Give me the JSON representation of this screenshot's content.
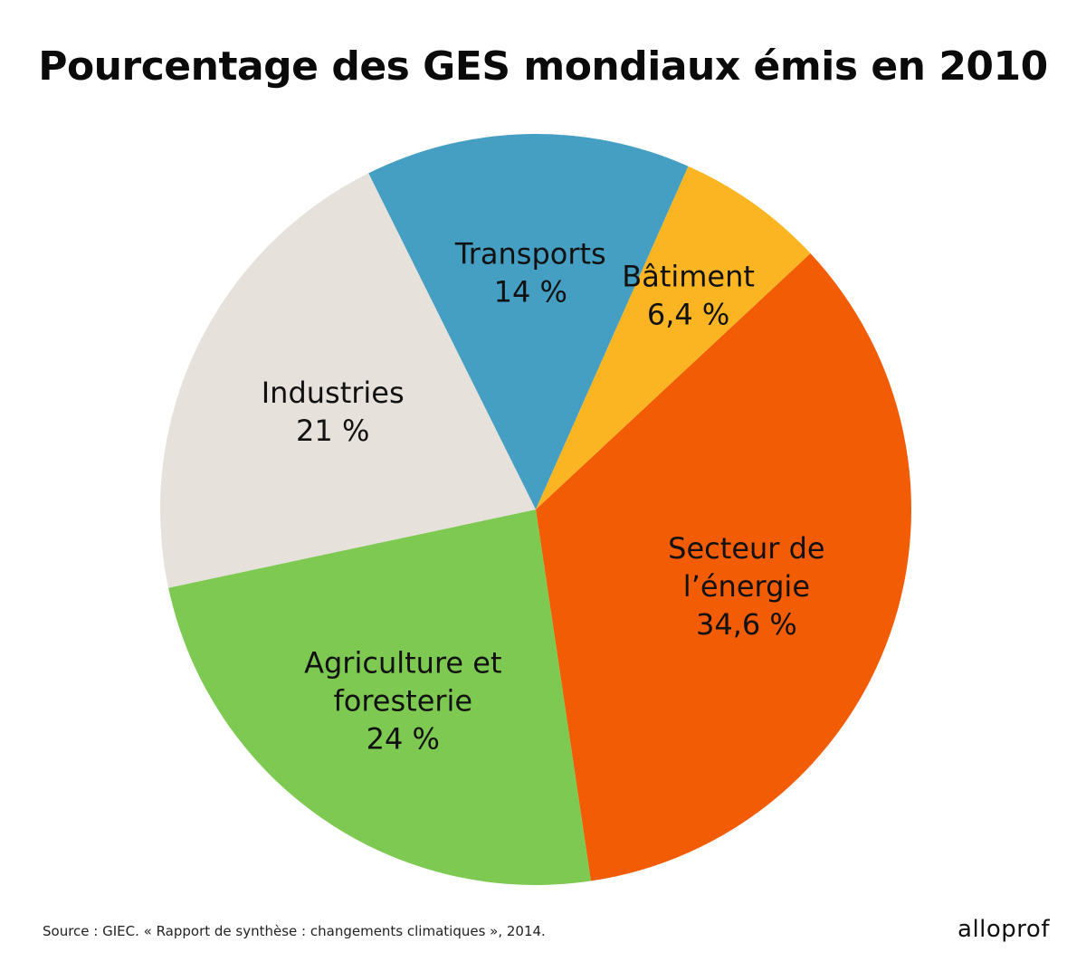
{
  "chart_data": {
    "type": "pie",
    "title": "Pourcentage des GES mondiaux émis en 2010",
    "slices": [
      {
        "name": "Secteur de l’énergie",
        "lines": [
          "Secteur de",
          "l’énergie",
          "34,6 %"
        ],
        "value": 34.6,
        "value_label": "34,6 %",
        "color": "#F25C05"
      },
      {
        "name": "Agriculture et foresterie",
        "lines": [
          "Agriculture et",
          "foresterie",
          "24 %"
        ],
        "value": 24,
        "value_label": "24 %",
        "color": "#7EC951"
      },
      {
        "name": "Industries",
        "lines": [
          "Industries",
          "21 %"
        ],
        "value": 21,
        "value_label": "21 %",
        "color": "#E6E1DA"
      },
      {
        "name": "Transports",
        "lines": [
          "Transports",
          "14 %"
        ],
        "value": 14,
        "value_label": "14 %",
        "color": "#449FC3"
      },
      {
        "name": "Bâtiment",
        "lines": [
          "Bâtiment",
          "6,4 %"
        ],
        "value": 6.4,
        "value_label": "6,4 %",
        "color": "#FBB523"
      }
    ],
    "start_angle_deg": 47,
    "direction": "clockwise"
  },
  "source": "Source : GIEC. « Rapport de synthèse : changements climatiques », 2014.",
  "logo": "alloprof"
}
